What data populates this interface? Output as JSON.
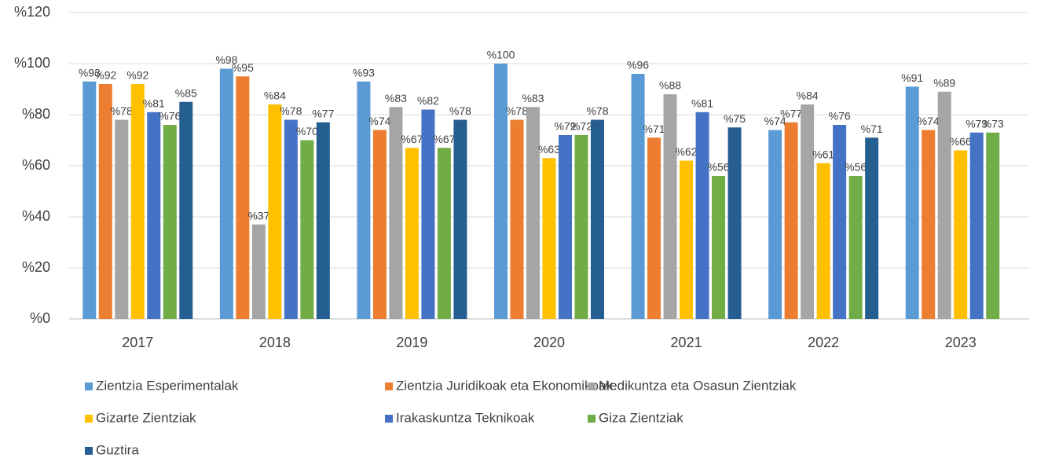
{
  "chart_data": {
    "type": "bar",
    "categories": [
      "2017",
      "2018",
      "2019",
      "2020",
      "2021",
      "2022",
      "2023"
    ],
    "series": [
      {
        "name": "Zientzia Esperimentalak",
        "color": "#5b9bd5",
        "values": [
          93,
          98,
          93,
          100,
          96,
          74,
          91
        ],
        "value_labels": [
          "%93",
          "%98",
          "%93",
          "%100",
          "%96",
          "%74",
          "%91"
        ]
      },
      {
        "name": "Zientzia Juridikoak eta Ekonomikoak",
        "color": "#ed7d31",
        "values": [
          92,
          95,
          74,
          78,
          71,
          77,
          74
        ],
        "value_labels": [
          "%92",
          "%95",
          "%74",
          "%78",
          "%71",
          "%77",
          "%74"
        ]
      },
      {
        "name": "Medikuntza eta Osasun Zientziak",
        "color": "#a5a5a5",
        "values": [
          78,
          37,
          83,
          83,
          88,
          84,
          89
        ],
        "value_labels": [
          "%78",
          "%37",
          "%83",
          "%83",
          "%88",
          "%84",
          "%89"
        ]
      },
      {
        "name": "Gizarte Zientziak",
        "color": "#ffc000",
        "values": [
          92,
          84,
          67,
          63,
          62,
          61,
          66
        ],
        "value_labels": [
          "%92",
          "%84",
          "%67",
          "%63",
          "%62",
          "%61",
          "%66"
        ]
      },
      {
        "name": "Irakaskuntza Teknikoak",
        "color": "#4472c4",
        "values": [
          81,
          78,
          82,
          72,
          81,
          76,
          73
        ],
        "value_labels": [
          "%81",
          "%78",
          "%82",
          "%72",
          "%81",
          "%76",
          "%73"
        ]
      },
      {
        "name": "Giza Zientziak",
        "color": "#70ad47",
        "values": [
          76,
          70,
          67,
          72,
          56,
          56,
          73
        ],
        "value_labels": [
          "%76",
          "%70",
          "%67",
          "%72",
          "%56",
          "%56",
          "%73"
        ]
      },
      {
        "name": "Guztira",
        "color": "#255e91",
        "values": [
          85,
          77,
          78,
          78,
          75,
          71,
          null
        ],
        "value_labels": [
          "%85",
          "%77",
          "%78",
          "%78",
          "%75",
          "%71",
          null
        ]
      }
    ],
    "ylim": [
      0,
      120
    ],
    "yticks": [
      {
        "value": 0,
        "label": "%0"
      },
      {
        "value": 20,
        "label": "%20"
      },
      {
        "value": 40,
        "label": "%40"
      },
      {
        "value": 60,
        "label": "%60"
      },
      {
        "value": 80,
        "label": "%80"
      },
      {
        "value": 100,
        "label": "%100"
      },
      {
        "value": 120,
        "label": "%120"
      }
    ],
    "grid": true,
    "legend": "bottom"
  }
}
